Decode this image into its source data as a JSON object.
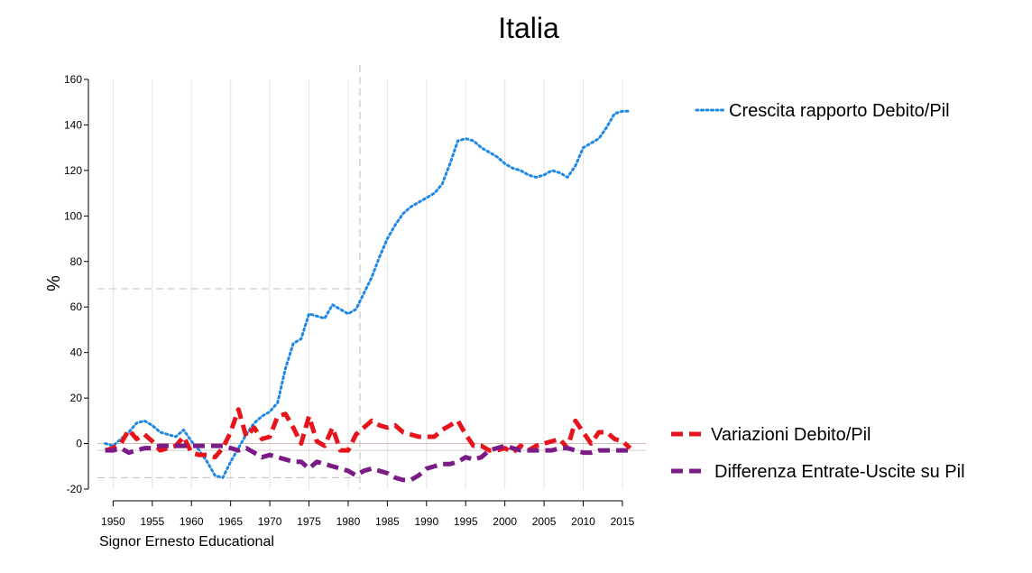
{
  "chart_data": {
    "type": "line",
    "title": "Italia",
    "xlabel": "",
    "ylabel": "%",
    "credit": "Signor Ernesto Educational",
    "xlim": [
      1948,
      2018
    ],
    "ylim": [
      -20,
      160
    ],
    "xticks": [
      1950,
      1955,
      1960,
      1965,
      1970,
      1975,
      1980,
      1985,
      1990,
      1995,
      2000,
      2005,
      2010,
      2015
    ],
    "yticks": [
      -20,
      0,
      20,
      40,
      60,
      80,
      100,
      120,
      140,
      160
    ],
    "grid": "vertical",
    "legend": "right",
    "reference_lines": {
      "vertical_x": 1981.5,
      "horizontal_y": [
        68,
        -15,
        -3
      ]
    },
    "x": [
      1949,
      1950,
      1951,
      1952,
      1953,
      1954,
      1955,
      1956,
      1957,
      1958,
      1959,
      1960,
      1961,
      1962,
      1963,
      1964,
      1965,
      1966,
      1967,
      1968,
      1969,
      1970,
      1971,
      1972,
      1973,
      1974,
      1975,
      1976,
      1977,
      1978,
      1979,
      1980,
      1981,
      1982,
      1983,
      1984,
      1985,
      1986,
      1987,
      1988,
      1989,
      1990,
      1991,
      1992,
      1993,
      1994,
      1995,
      1996,
      1997,
      1998,
      1999,
      2000,
      2001,
      2002,
      2003,
      2004,
      2005,
      2006,
      2007,
      2008,
      2009,
      2010,
      2011,
      2012,
      2013,
      2014,
      2015,
      2016
    ],
    "series": [
      {
        "name": "Crescita rapporto Debito/Pil",
        "color": "#1e88e5",
        "style": "dotted",
        "values": [
          0,
          -1,
          2,
          5,
          9,
          10,
          8,
          5,
          4,
          3,
          6,
          1,
          -3,
          -8,
          -14,
          -15,
          -8,
          -2,
          4,
          9,
          12,
          14,
          18,
          33,
          44,
          46,
          57,
          56,
          55,
          61,
          59,
          57,
          59,
          66,
          73,
          82,
          90,
          96,
          101,
          104,
          106,
          108,
          110,
          114,
          123,
          133,
          134,
          133,
          130,
          128,
          126,
          123,
          121,
          120,
          118,
          117,
          118,
          120,
          119,
          117,
          122,
          130,
          132,
          134,
          139,
          145,
          146,
          146
        ]
      },
      {
        "name": "Variazioni Debito/Pil",
        "color": "#e8141c",
        "style": "dashed",
        "values": [
          -3,
          -2,
          0,
          6,
          2,
          4,
          1,
          -3,
          -2,
          -1,
          3,
          -4,
          -5,
          -5,
          -6,
          -2,
          5,
          15,
          3,
          7,
          2,
          3,
          12,
          13,
          7,
          0,
          12,
          1,
          -1,
          7,
          -3,
          -3,
          4,
          7,
          10,
          8,
          7,
          8,
          5,
          4,
          3,
          3,
          3,
          6,
          8,
          10,
          4,
          -1,
          -1,
          -3,
          -3,
          -2,
          -4,
          -1,
          -3,
          -1,
          0,
          1,
          2,
          -2,
          10,
          5,
          0,
          5,
          5,
          2,
          1,
          -2
        ]
      },
      {
        "name": "Differenza Entrate-Uscite su Pil",
        "color": "#7b1b86",
        "style": "dashed",
        "values": [
          -3,
          -3,
          -2,
          -4,
          -3,
          -2,
          -2,
          -1,
          -1,
          -1,
          -1,
          -1,
          -1,
          -1,
          -1,
          -1,
          -2,
          -3,
          -2,
          -4,
          -6,
          -5,
          -6,
          -7,
          -8,
          -8,
          -11,
          -8,
          -9,
          -10,
          -11,
          -12,
          -14,
          -12,
          -11,
          -12,
          -13,
          -15,
          -16,
          -16,
          -14,
          -11,
          -10,
          -9,
          -9,
          -8,
          -6,
          -7,
          -6,
          -3,
          -2,
          -1,
          -2,
          -3,
          -3,
          -3,
          -3,
          -3,
          -2,
          -2,
          -3,
          -4,
          -4,
          -3,
          -3,
          -3,
          -3,
          -3
        ]
      }
    ]
  }
}
